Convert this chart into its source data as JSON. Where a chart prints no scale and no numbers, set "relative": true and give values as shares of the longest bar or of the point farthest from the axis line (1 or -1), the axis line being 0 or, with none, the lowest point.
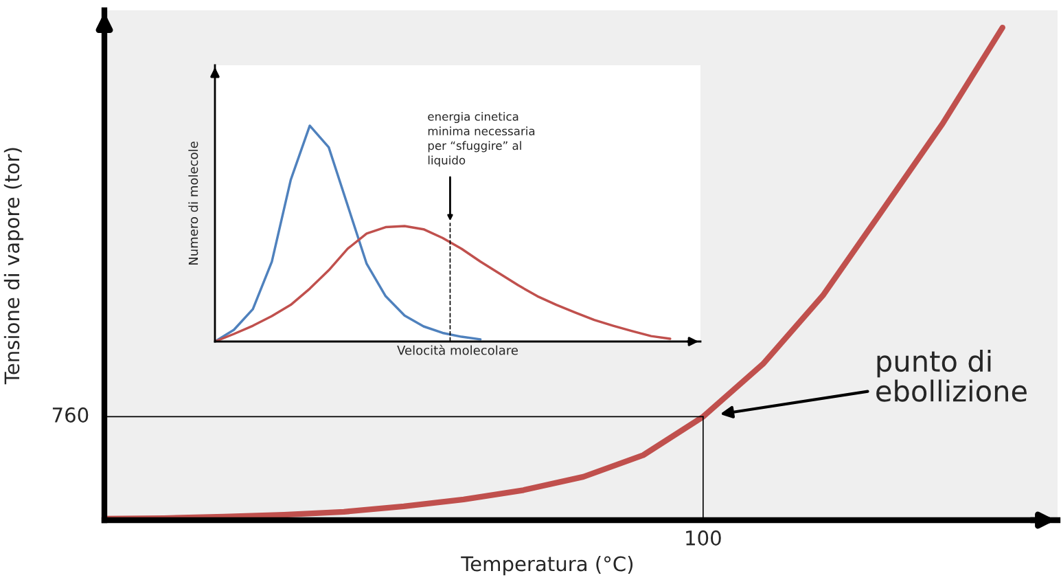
{
  "chart_data": [
    {
      "type": "line",
      "xlabel": "Temperatura (°C)",
      "ylabel": "Tensione di vapore (tor)",
      "relative": true,
      "categories": [
        null,
        null,
        null,
        null,
        null,
        null,
        null,
        null,
        null,
        null,
        null,
        null,
        null,
        null,
        null,
        null
      ],
      "series": [
        {
          "color": "#c0504d",
          "values": [
            0.003,
            0.004,
            0.007,
            0.011,
            0.017,
            0.028,
            0.042,
            0.061,
            0.088,
            0.132,
            0.21,
            0.317,
            0.456,
            0.63,
            0.805,
            1.0
          ]
        }
      ],
      "annotations": [
        "760",
        "100",
        "punto di\nebollizione"
      ]
    },
    {
      "type": "line",
      "xlabel": "Velocità molecolare",
      "ylabel": "Numero di molecole",
      "relative": true,
      "categories": [
        null,
        null,
        null,
        null,
        null,
        null,
        null,
        null,
        null,
        null,
        null,
        null,
        null,
        null,
        null,
        null,
        null,
        null,
        null,
        null,
        null,
        null,
        null,
        null,
        null
      ],
      "series": [
        {
          "color": "#4f81bd",
          "values": [
            0,
            0.054,
            0.15,
            0.37,
            0.75,
            1.0,
            0.9,
            0.63,
            0.36,
            0.21,
            0.12,
            0.07,
            0.04,
            0.022,
            0.01,
            null,
            null,
            null,
            null,
            null,
            null,
            null,
            null,
            null,
            null
          ]
        },
        {
          "color": "#c0504d",
          "values": [
            0,
            0.035,
            0.073,
            0.118,
            0.17,
            0.245,
            0.33,
            0.43,
            0.5,
            0.53,
            0.535,
            0.52,
            0.48,
            0.43,
            0.37,
            0.315,
            0.26,
            0.21,
            0.17,
            0.134,
            0.1,
            0.073,
            0.048,
            0.025,
            0.013
          ]
        }
      ],
      "annotations": [
        "energia cinetica\nminima necessaria\nper “sfuggire” al\nliquido"
      ]
    }
  ]
}
